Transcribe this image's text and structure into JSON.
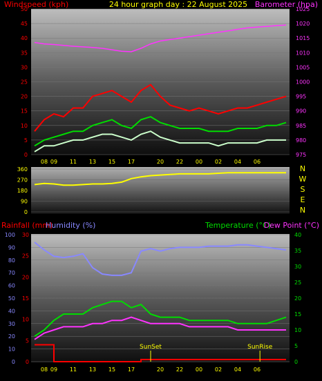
{
  "chart_data": [
    {
      "type": "line",
      "title": "24 hour graph day : 22 August 2025",
      "ylabel_left": "Windspeed (kph)",
      "ylabel_right": "Barometer (hpa)",
      "ylim_left": [
        0,
        50
      ],
      "ylim_right": [
        975,
        1025
      ],
      "yticks_left": [
        "0",
        "5",
        "10",
        "15",
        "20",
        "25",
        "30",
        "35",
        "40",
        "45",
        "50"
      ],
      "yticks_right": [
        "975",
        "980",
        "985",
        "990",
        "995",
        "1000",
        "1005",
        "1010",
        "1015",
        "1020",
        "1025"
      ],
      "x_hours": [
        "07",
        "08",
        "09",
        "10",
        "11",
        "12",
        "13",
        "14",
        "15",
        "16",
        "17",
        "18",
        "19",
        "20",
        "21",
        "22",
        "23",
        "00",
        "01",
        "02",
        "03",
        "04",
        "05",
        "06",
        "07",
        "08",
        "09"
      ],
      "xtick_labels": [
        "09",
        "11",
        "13",
        "15",
        "17",
        "20",
        "22",
        "00",
        "02",
        "04",
        "06",
        "08"
      ],
      "series": [
        {
          "key": "gust",
          "color": "#ff0000",
          "values": [
            8,
            12,
            14,
            13,
            16,
            16,
            20,
            21,
            22,
            20,
            18,
            22,
            24,
            20,
            17,
            16,
            15,
            16,
            15,
            14,
            15,
            16,
            16,
            17,
            18,
            19,
            20
          ]
        },
        {
          "key": "average",
          "color": "#00dd00",
          "values": [
            3,
            5,
            6,
            7,
            8,
            8,
            10,
            11,
            12,
            10,
            9,
            12,
            13,
            11,
            10,
            9,
            9,
            9,
            8,
            8,
            8,
            9,
            9,
            9,
            10,
            10,
            11
          ]
        },
        {
          "key": "lull",
          "color": "#ccffcc",
          "values": [
            1,
            3,
            3,
            4,
            5,
            5,
            6,
            7,
            7,
            6,
            5,
            7,
            8,
            6,
            5,
            4,
            4,
            4,
            4,
            3,
            4,
            4,
            4,
            4,
            5,
            5,
            5
          ]
        },
        {
          "key": "barometer",
          "color": "#ff33ff",
          "axis": "right",
          "values": [
            1013.5,
            1013,
            1012.8,
            1012.5,
            1012.2,
            1012,
            1011.8,
            1011.5,
            1011,
            1010.5,
            1010.3,
            1011.5,
            1013,
            1014,
            1014.5,
            1015,
            1015.5,
            1016,
            1016.5,
            1017,
            1017.5,
            1018,
            1018.5,
            1018.8,
            1019,
            1019.3,
            1019.5
          ]
        }
      ]
    },
    {
      "type": "line",
      "side_letters": [
        "N",
        "W",
        "S",
        "E",
        "N"
      ],
      "yticks": [
        "0",
        "90",
        "180",
        "270",
        "360"
      ],
      "ylim": [
        0,
        360
      ],
      "series": [
        {
          "key": "direction",
          "color": "#ffff00",
          "values": [
            230,
            240,
            235,
            225,
            225,
            230,
            235,
            235,
            240,
            250,
            280,
            295,
            305,
            310,
            315,
            320,
            320,
            320,
            320,
            325,
            330,
            330,
            330,
            330,
            330,
            330,
            330
          ]
        }
      ]
    },
    {
      "type": "line",
      "ylabel_rain": "Rainfall (mm)",
      "ylabel_hum": "Humidity (%)",
      "ylabel_temp": "Temperature (°C)",
      "ylabel_dew": "Dew Point (°C)",
      "yticks_hum": [
        "0",
        "10",
        "20",
        "30",
        "40",
        "50",
        "60",
        "70",
        "80",
        "90",
        "100"
      ],
      "yticks_rain": [
        "0",
        "5",
        "10",
        "15",
        "20",
        "25",
        "30"
      ],
      "yticks_temp": [
        "0",
        "5",
        "10",
        "15",
        "20",
        "25",
        "30",
        "35",
        "40"
      ],
      "ylim_hum": [
        0,
        100
      ],
      "ylim_rain": [
        0,
        30
      ],
      "ylim_temp": [
        0,
        40
      ],
      "annotations": [
        {
          "text": "SunSet",
          "hour": 19
        },
        {
          "text": "SunRise",
          "hour": 6.3
        }
      ],
      "series": [
        {
          "key": "humidity",
          "color": "#8888ff",
          "axis": "hum",
          "values": [
            94,
            88,
            83,
            82,
            83,
            85,
            74,
            69,
            68,
            68,
            70,
            87,
            89,
            87,
            89,
            90,
            90,
            90,
            91,
            91,
            91,
            92,
            92,
            91,
            90,
            89,
            88
          ]
        },
        {
          "key": "temperature",
          "color": "#00dd00",
          "axis": "temp",
          "values": [
            8,
            10,
            13,
            15,
            15,
            15,
            17,
            18,
            19,
            19,
            17,
            18,
            15,
            14,
            14,
            14,
            13,
            13,
            13,
            13,
            13,
            12,
            12,
            12,
            12,
            13,
            14
          ]
        },
        {
          "key": "dewpoint",
          "color": "#ff33ff",
          "axis": "temp",
          "values": [
            7,
            9,
            10,
            11,
            11,
            11,
            12,
            12,
            13,
            13,
            14,
            13,
            12,
            12,
            12,
            12,
            11,
            11,
            11,
            11,
            11,
            10,
            10,
            10,
            10,
            10,
            10
          ]
        },
        {
          "key": "rain",
          "color": "#ff0000",
          "axis": "rain",
          "values": [
            4,
            4,
            0,
            0,
            0,
            0,
            0,
            0,
            0,
            0,
            0,
            0.5,
            0.5,
            0.5,
            0.5,
            0.5,
            0.5,
            0.5,
            0.5,
            0.5,
            0.5,
            0.5,
            0.5,
            0.5,
            0.5,
            0.5,
            0.5
          ]
        }
      ]
    }
  ]
}
